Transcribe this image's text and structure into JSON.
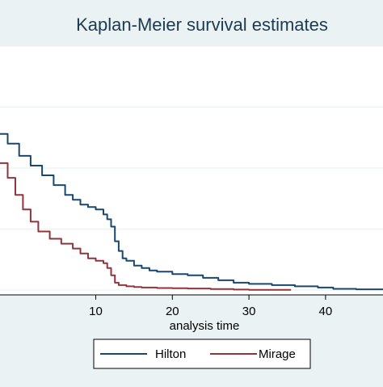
{
  "chart_data": {
    "type": "line",
    "title": "Kaplan-Meier survival estimates",
    "xlabel": "analysis time",
    "ylabel": "",
    "xlim": [
      -2.5,
      47.5
    ],
    "ylim": [
      -0.02,
      1.0
    ],
    "x_ticks": [
      10,
      20,
      30,
      40
    ],
    "y_gridlines": [
      0.0,
      0.25,
      0.5,
      0.75,
      1.0
    ],
    "grid": true,
    "legend": {
      "position": "bottom",
      "entries": [
        "Hilton",
        "Mirage"
      ]
    },
    "colors": {
      "background": "#eaf2f3",
      "plot_background": "#ffffff",
      "gridline": "#eaf2f3",
      "Hilton": "#1a476f",
      "Mirage": "#90353b"
    },
    "series": [
      {
        "name": "Hilton",
        "x": [
          -2.5,
          -1.5,
          0,
          1.5,
          3,
          4.5,
          6,
          7,
          8,
          9,
          10,
          11,
          11.5,
          12,
          12.5,
          13,
          13.5,
          14,
          15,
          16,
          17,
          18,
          20,
          22,
          24,
          26,
          28,
          30,
          33,
          36,
          39,
          41,
          44,
          47.5
        ],
        "y": [
          0.64,
          0.6,
          0.55,
          0.51,
          0.47,
          0.43,
          0.39,
          0.37,
          0.35,
          0.34,
          0.33,
          0.31,
          0.29,
          0.26,
          0.2,
          0.16,
          0.13,
          0.12,
          0.1,
          0.09,
          0.08,
          0.075,
          0.065,
          0.06,
          0.05,
          0.04,
          0.03,
          0.025,
          0.02,
          0.015,
          0.01,
          0.005,
          0.003,
          0.002
        ]
      },
      {
        "name": "Mirage",
        "x": [
          -2.5,
          -1.5,
          -0.5,
          0.5,
          1.5,
          2.5,
          4,
          5.5,
          7,
          8,
          9,
          10,
          11,
          11.5,
          12,
          12.5,
          13,
          14,
          15,
          16,
          18,
          20,
          22,
          25,
          28,
          30,
          33,
          35.5
        ],
        "y": [
          0.52,
          0.46,
          0.39,
          0.33,
          0.28,
          0.24,
          0.21,
          0.19,
          0.17,
          0.15,
          0.13,
          0.12,
          0.11,
          0.09,
          0.06,
          0.03,
          0.02,
          0.015,
          0.012,
          0.01,
          0.008,
          0.007,
          0.006,
          0.004,
          0.002,
          0.001,
          0.001,
          0.001
        ]
      }
    ]
  }
}
